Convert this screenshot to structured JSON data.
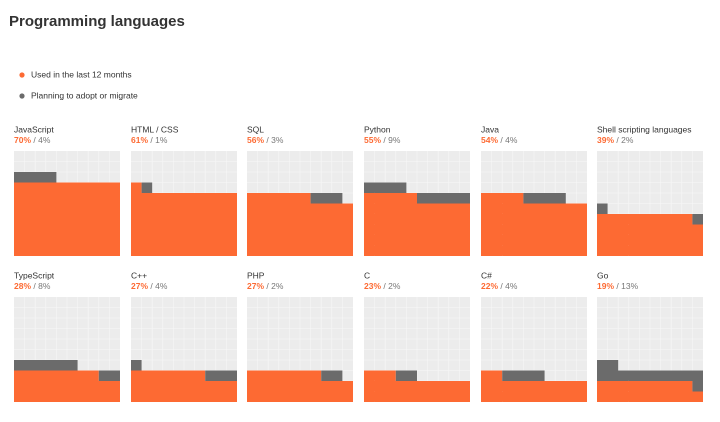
{
  "chart_data": {
    "type": "waffle",
    "title": "Programming languages",
    "separator": "/",
    "categories": [
      "JavaScript",
      "HTML / CSS",
      "SQL",
      "Python",
      "Java",
      "Shell scripting languages",
      "TypeScript",
      "C++",
      "PHP",
      "C",
      "C#",
      "Go"
    ],
    "series": [
      {
        "name": "Used in the last 12 months",
        "color": "#fd6a33",
        "values": [
          70,
          61,
          56,
          55,
          54,
          39,
          28,
          27,
          27,
          23,
          22,
          19
        ],
        "value_labels": [
          "70%",
          "61%",
          "56%",
          "55%",
          "54%",
          "39%",
          "28%",
          "27%",
          "27%",
          "23%",
          "22%",
          "19%"
        ]
      },
      {
        "name": "Planning to adopt or migrate",
        "color": "#6b6b6b",
        "values": [
          4,
          1,
          3,
          9,
          4,
          2,
          8,
          4,
          2,
          2,
          4,
          13
        ],
        "value_labels": [
          "4%",
          "1%",
          "3%",
          "9%",
          "4%",
          "2%",
          "8%",
          "4%",
          "2%",
          "2%",
          "4%",
          "13%"
        ]
      }
    ]
  }
}
